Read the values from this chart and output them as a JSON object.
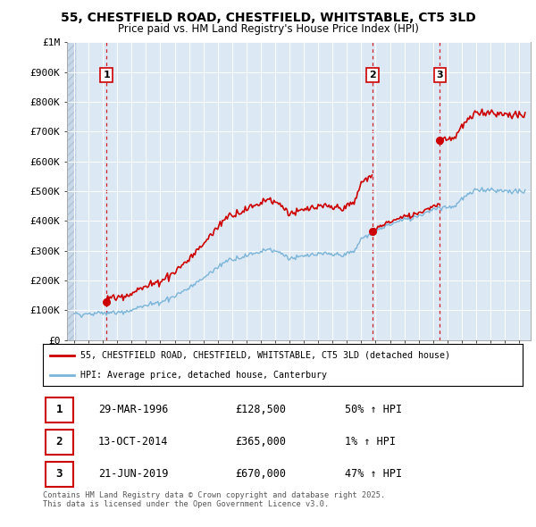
{
  "title_line1": "55, CHESTFIELD ROAD, CHESTFIELD, WHITSTABLE, CT5 3LD",
  "title_line2": "Price paid vs. HM Land Registry's House Price Index (HPI)",
  "ylim": [
    0,
    1000000
  ],
  "yticks": [
    0,
    100000,
    200000,
    300000,
    400000,
    500000,
    600000,
    700000,
    800000,
    900000,
    1000000
  ],
  "ytick_labels": [
    "£0",
    "£100K",
    "£200K",
    "£300K",
    "£400K",
    "£500K",
    "£600K",
    "£700K",
    "£800K",
    "£900K",
    "£1M"
  ],
  "hpi_color": "#7ab4d8",
  "price_color": "#cc0000",
  "vline_color": "#cc0000",
  "background_color": "#dde8f5",
  "grid_color": "#ffffff",
  "sale_year_floats": [
    1996.247,
    2014.786,
    2019.472
  ],
  "sale_prices": [
    128500,
    365000,
    670000
  ],
  "sale_labels": [
    "1",
    "2",
    "3"
  ],
  "sale_info": [
    {
      "num": "1",
      "date": "29-MAR-1996",
      "price": "£128,500",
      "hpi": "50% ↑ HPI"
    },
    {
      "num": "2",
      "date": "13-OCT-2014",
      "price": "£365,000",
      "hpi": "1% ↑ HPI"
    },
    {
      "num": "3",
      "date": "21-JUN-2019",
      "price": "£670,000",
      "hpi": "47% ↑ HPI"
    }
  ],
  "legend_line1": "55, CHESTFIELD ROAD, CHESTFIELD, WHITSTABLE, CT5 3LD (detached house)",
  "legend_line2": "HPI: Average price, detached house, Canterbury",
  "footnote": "Contains HM Land Registry data © Crown copyright and database right 2025.\nThis data is licensed under the Open Government Licence v3.0."
}
